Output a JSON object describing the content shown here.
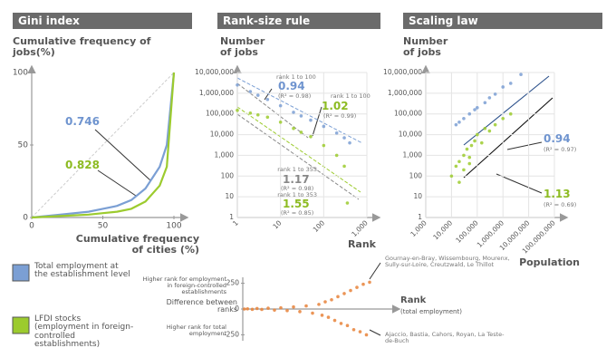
{
  "chart_data": [
    {
      "type": "line",
      "title": "Gini index",
      "ylabel": "Cumulative frequency of jobs(%)",
      "xlabel": "Cumulative frequency of cities (%)",
      "xlim": [
        0,
        100
      ],
      "ylim": [
        0,
        100
      ],
      "xticks": [
        0,
        50,
        100
      ],
      "yticks": [
        0,
        50,
        100
      ],
      "x": [
        0,
        20,
        40,
        50,
        60,
        70,
        80,
        90,
        95,
        100
      ],
      "series": [
        {
          "name": "Total employment at the establishment level",
          "color": "#7b9fd4",
          "values": [
            0,
            2,
            4,
            6,
            8,
            12,
            20,
            35,
            50,
            100
          ]
        },
        {
          "name": "LFDI stocks (employment in foreign-controlled establishments)",
          "color": "#9ccb2e",
          "values": [
            0,
            1,
            2,
            3,
            4,
            6,
            11,
            22,
            35,
            100
          ]
        }
      ],
      "annotations": [
        "0.746",
        "0.828"
      ]
    },
    {
      "type": "scatter",
      "title": "Rank-size rule",
      "ylabel": "Number of jobs",
      "xlabel": "Rank",
      "xlog": true,
      "ylog": true,
      "grid": true,
      "xlim": [
        1,
        1000
      ],
      "ylim": [
        1,
        10000000
      ],
      "xticks": [
        1,
        10,
        100,
        {
          "value": 1000,
          "label": "1,000"
        }
      ],
      "yticks": [
        1,
        10,
        100,
        {
          "value": 1000,
          "label": "1,000"
        },
        {
          "value": 10000,
          "label": "10,000"
        },
        {
          "value": 100000,
          "label": "100,000"
        },
        {
          "value": 1000000,
          "label": "1,000,000"
        },
        {
          "value": 10000000,
          "label": "10,000,000"
        }
      ],
      "series": [
        {
          "color": "#7b9fd4",
          "x": [
            1,
            2,
            3,
            5,
            10,
            20,
            30,
            50,
            100,
            200,
            300,
            400
          ],
          "values": [
            2500000,
            1200000,
            800000,
            500000,
            250000,
            120000,
            80000,
            50000,
            25000,
            12000,
            7000,
            4000
          ]
        },
        {
          "color": "#9ccb2e",
          "x": [
            1,
            2,
            3,
            5,
            10,
            20,
            30,
            50,
            100,
            200,
            300,
            353
          ],
          "values": [
            150000,
            110000,
            90000,
            70000,
            40000,
            20000,
            13000,
            8000,
            3000,
            1000,
            300,
            5
          ]
        }
      ],
      "annotations": [
        "rank 1 to 100",
        "0.94",
        "(R² = 0.98)",
        "rank 1 to 100",
        "1.02",
        "(R² = 0.99)",
        "rank 1 to 353",
        "1.17",
        "(R² = 0.98)",
        "rank 1 to 353",
        "1.55",
        "(R² = 0.85)"
      ]
    },
    {
      "type": "scatter",
      "title": "Scaling law",
      "ylabel": "Number of jobs",
      "xlabel": "Population",
      "xlog": true,
      "ylog": true,
      "grid": true,
      "xlim": [
        1000,
        100000000
      ],
      "ylim": [
        1,
        10000000
      ],
      "xticks": [
        {
          "value": 1000,
          "label": "1,000"
        },
        {
          "value": 10000,
          "label": "10,000"
        },
        {
          "value": 100000,
          "label": "100,000"
        },
        {
          "value": 1000000,
          "label": "1,000,000"
        },
        {
          "value": 10000000,
          "label": "10,000,000"
        },
        {
          "value": 100000000,
          "label": "100,000,000"
        }
      ],
      "yticks": [
        1,
        10,
        100,
        {
          "value": 1000,
          "label": "1,000"
        },
        {
          "value": 10000,
          "label": "10,000"
        },
        {
          "value": 100000,
          "label": "100,000"
        },
        {
          "value": 1000000,
          "label": "1,000,000"
        },
        {
          "value": 10000000,
          "label": "10,000,000"
        }
      ],
      "series": [
        {
          "color": "#7b9fd4",
          "x": [
            15000,
            20000,
            30000,
            50000,
            80000,
            100000,
            200000,
            300000,
            500000,
            1000000,
            2000000,
            5000000
          ],
          "values": [
            30000,
            40000,
            60000,
            100000,
            160000,
            200000,
            350000,
            600000,
            900000,
            2000000,
            3000000,
            8000000
          ]
        },
        {
          "color": "#9ccb2e",
          "x": [
            10000,
            15000,
            20000,
            30000,
            40000,
            50000,
            60000,
            80000,
            100000,
            150000,
            200000,
            300000,
            500000,
            1000000,
            2000000,
            20000,
            30000,
            50000
          ],
          "values": [
            100,
            300,
            500,
            1000,
            2000,
            800,
            3000,
            5000,
            10000,
            4000,
            20000,
            15000,
            30000,
            60000,
            100000,
            50,
            200,
            400
          ]
        }
      ],
      "annotations": [
        "0.94",
        "(R² = 0.97)",
        "1.13",
        "(R² = 0.69)"
      ]
    },
    {
      "type": "scatter",
      "ylabel": "Difference between ranks",
      "xlabel": "Rank",
      "xlabel_note": "(total employment)",
      "xlim": [
        0,
        420
      ],
      "ylim": [
        -290,
        290
      ],
      "yticks": [
        250,
        0,
        -250
      ],
      "series": [
        {
          "color": "#e8833a",
          "x": [
            5,
            15,
            30,
            45,
            60,
            80,
            100,
            120,
            140,
            160,
            180,
            200,
            220,
            240,
            250,
            260,
            270,
            280,
            290,
            300,
            310,
            320,
            330,
            340,
            350,
            360,
            370,
            380,
            390,
            400
          ],
          "values": [
            0,
            2,
            -3,
            5,
            -4,
            8,
            -10,
            12,
            -15,
            20,
            -25,
            30,
            -40,
            45,
            -60,
            70,
            -80,
            90,
            -110,
            120,
            -140,
            150,
            -160,
            180,
            -200,
            210,
            -220,
            240,
            -250,
            260
          ]
        }
      ],
      "annotations": [
        "Higher rank for employment in foreign-controlled establishments",
        "Higher rank for total employment",
        "Gournay-en-Bray, Wissembourg, Mourenx, Sully-sur-Loire, Creutzwald, Le Thillot",
        "Ajaccio, Bastia, Cahors, Royan, La Teste-de-Buch"
      ]
    }
  ]
}
